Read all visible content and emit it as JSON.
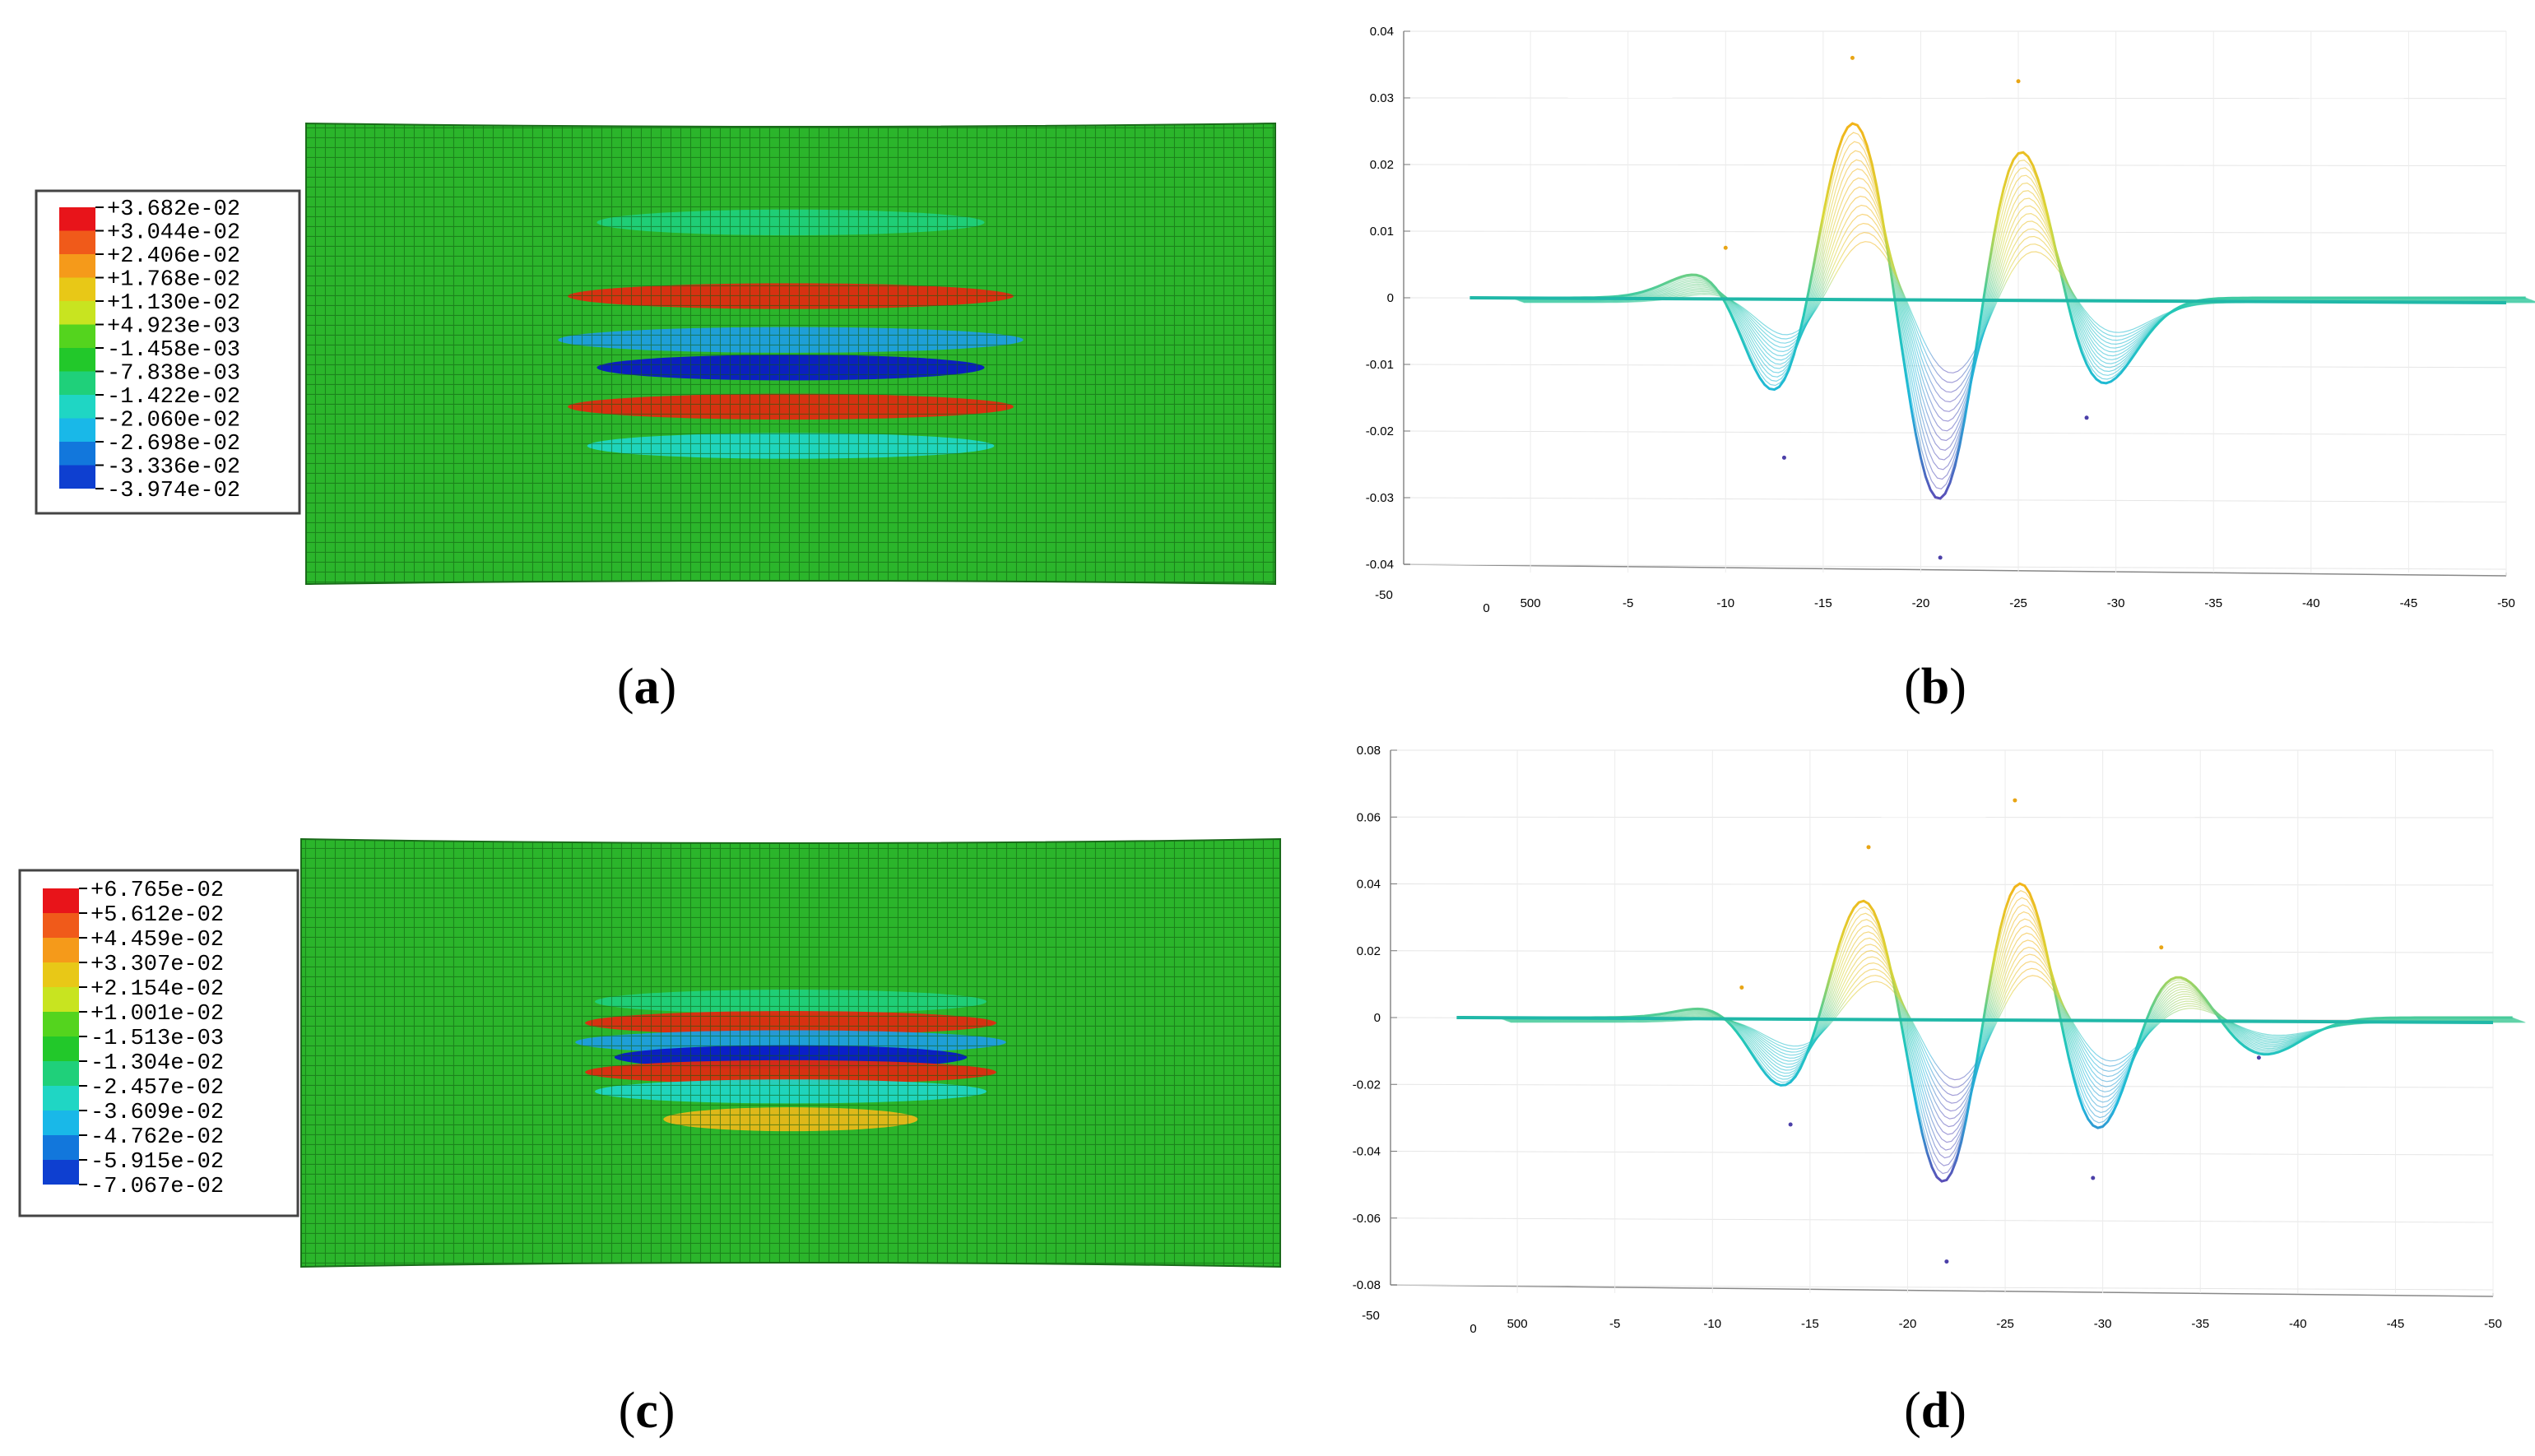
{
  "panels": [
    {
      "label_prefix": "(",
      "label_letter": "a",
      "label_suffix": ")"
    },
    {
      "label_prefix": "(",
      "label_letter": "b",
      "label_suffix": ")"
    },
    {
      "label_prefix": "(",
      "label_letter": "c",
      "label_suffix": ")"
    },
    {
      "label_prefix": "(",
      "label_letter": "d",
      "label_suffix": ")"
    }
  ],
  "chart_data": [
    {
      "type": "heatmap",
      "panel": "a",
      "legend": {
        "values": [
          "+3.682e-02",
          "+3.044e-02",
          "+2.406e-02",
          "+1.768e-02",
          "+1.130e-02",
          "+4.923e-03",
          "-1.458e-03",
          "-7.838e-03",
          "-1.422e-02",
          "-2.060e-02",
          "-2.698e-02",
          "-3.336e-02",
          "-3.974e-02"
        ],
        "colors": [
          "#e8141a",
          "#f05a1a",
          "#f59a1a",
          "#e8c817",
          "#c8e420",
          "#54d41e",
          "#22c82a",
          "#1fd07a",
          "#1fd6c4",
          "#19b8e8",
          "#1277dc",
          "#0e3fd0",
          "#0a10c8"
        ]
      },
      "base_color": "#2bb52b",
      "bands": [
        {
          "y": 0.215,
          "color": "#1fd07a",
          "halfwidth": 0.2
        },
        {
          "y": 0.375,
          "color": "#e02a10",
          "halfwidth": 0.23
        },
        {
          "y": 0.47,
          "color": "#1d9ee0",
          "halfwidth": 0.24
        },
        {
          "y": 0.53,
          "color": "#0a18c8",
          "halfwidth": 0.2
        },
        {
          "y": 0.615,
          "color": "#e02a10",
          "halfwidth": 0.23
        },
        {
          "y": 0.7,
          "color": "#1fd6c4",
          "halfwidth": 0.21
        }
      ]
    },
    {
      "type": "line",
      "panel": "b",
      "ylim": [
        -0.04,
        0.04
      ],
      "yticks": [
        "0.04",
        "0.03",
        "0.02",
        "0.01",
        "0",
        "-0.01",
        "-0.02",
        "-0.03",
        "-0.04"
      ],
      "xticks": [
        "500",
        "-5",
        "-10",
        "-15",
        "-20",
        "-25",
        "-30",
        "-35",
        "-40",
        "-45",
        "-50"
      ],
      "depth_ticks": [
        "-50",
        "0"
      ],
      "peaks": [
        {
          "x": -10,
          "y": 0.0075
        },
        {
          "x": -16.5,
          "y": 0.036
        },
        {
          "x": -25,
          "y": 0.0325
        },
        {
          "x": -13,
          "y": -0.024
        },
        {
          "x": -21,
          "y": -0.039
        },
        {
          "x": -28.5,
          "y": -0.018
        }
      ]
    },
    {
      "type": "heatmap",
      "panel": "c",
      "legend": {
        "values": [
          "+6.765e-02",
          "+5.612e-02",
          "+4.459e-02",
          "+3.307e-02",
          "+2.154e-02",
          "+1.001e-02",
          "-1.513e-03",
          "-1.304e-02",
          "-2.457e-02",
          "-3.609e-02",
          "-4.762e-02",
          "-5.915e-02",
          "-7.067e-02"
        ],
        "colors": [
          "#e8141a",
          "#f05a1a",
          "#f59a1a",
          "#e8c817",
          "#c8e420",
          "#54d41e",
          "#22c82a",
          "#1fd07a",
          "#1fd6c4",
          "#19b8e8",
          "#1277dc",
          "#0e3fd0",
          "#0a10c8"
        ]
      },
      "base_color": "#2bb52b",
      "bands": [
        {
          "y": 0.38,
          "color": "#1fd07a",
          "halfwidth": 0.2
        },
        {
          "y": 0.43,
          "color": "#e02a10",
          "halfwidth": 0.21
        },
        {
          "y": 0.475,
          "color": "#1d9ee0",
          "halfwidth": 0.22
        },
        {
          "y": 0.51,
          "color": "#0a18c8",
          "halfwidth": 0.18
        },
        {
          "y": 0.545,
          "color": "#e02a10",
          "halfwidth": 0.21
        },
        {
          "y": 0.59,
          "color": "#1fd6c4",
          "halfwidth": 0.2
        },
        {
          "y": 0.655,
          "color": "#e8b818",
          "halfwidth": 0.13
        }
      ]
    },
    {
      "type": "line",
      "panel": "d",
      "ylim": [
        -0.08,
        0.08
      ],
      "yticks": [
        "0.08",
        "0.06",
        "0.04",
        "0.02",
        "0",
        "-0.02",
        "-0.04",
        "-0.06",
        "-0.08"
      ],
      "xticks": [
        "500",
        "-5",
        "-10",
        "-15",
        "-20",
        "-25",
        "-30",
        "-35",
        "-40",
        "-45",
        "-50"
      ],
      "depth_ticks": [
        "-50",
        "0"
      ],
      "peaks": [
        {
          "x": -11.5,
          "y": 0.009
        },
        {
          "x": -18,
          "y": 0.051
        },
        {
          "x": -25.5,
          "y": 0.065
        },
        {
          "x": -33,
          "y": 0.021
        },
        {
          "x": -14,
          "y": -0.032
        },
        {
          "x": -22,
          "y": -0.073
        },
        {
          "x": -29.5,
          "y": -0.048
        },
        {
          "x": -38,
          "y": -0.012
        }
      ]
    }
  ]
}
